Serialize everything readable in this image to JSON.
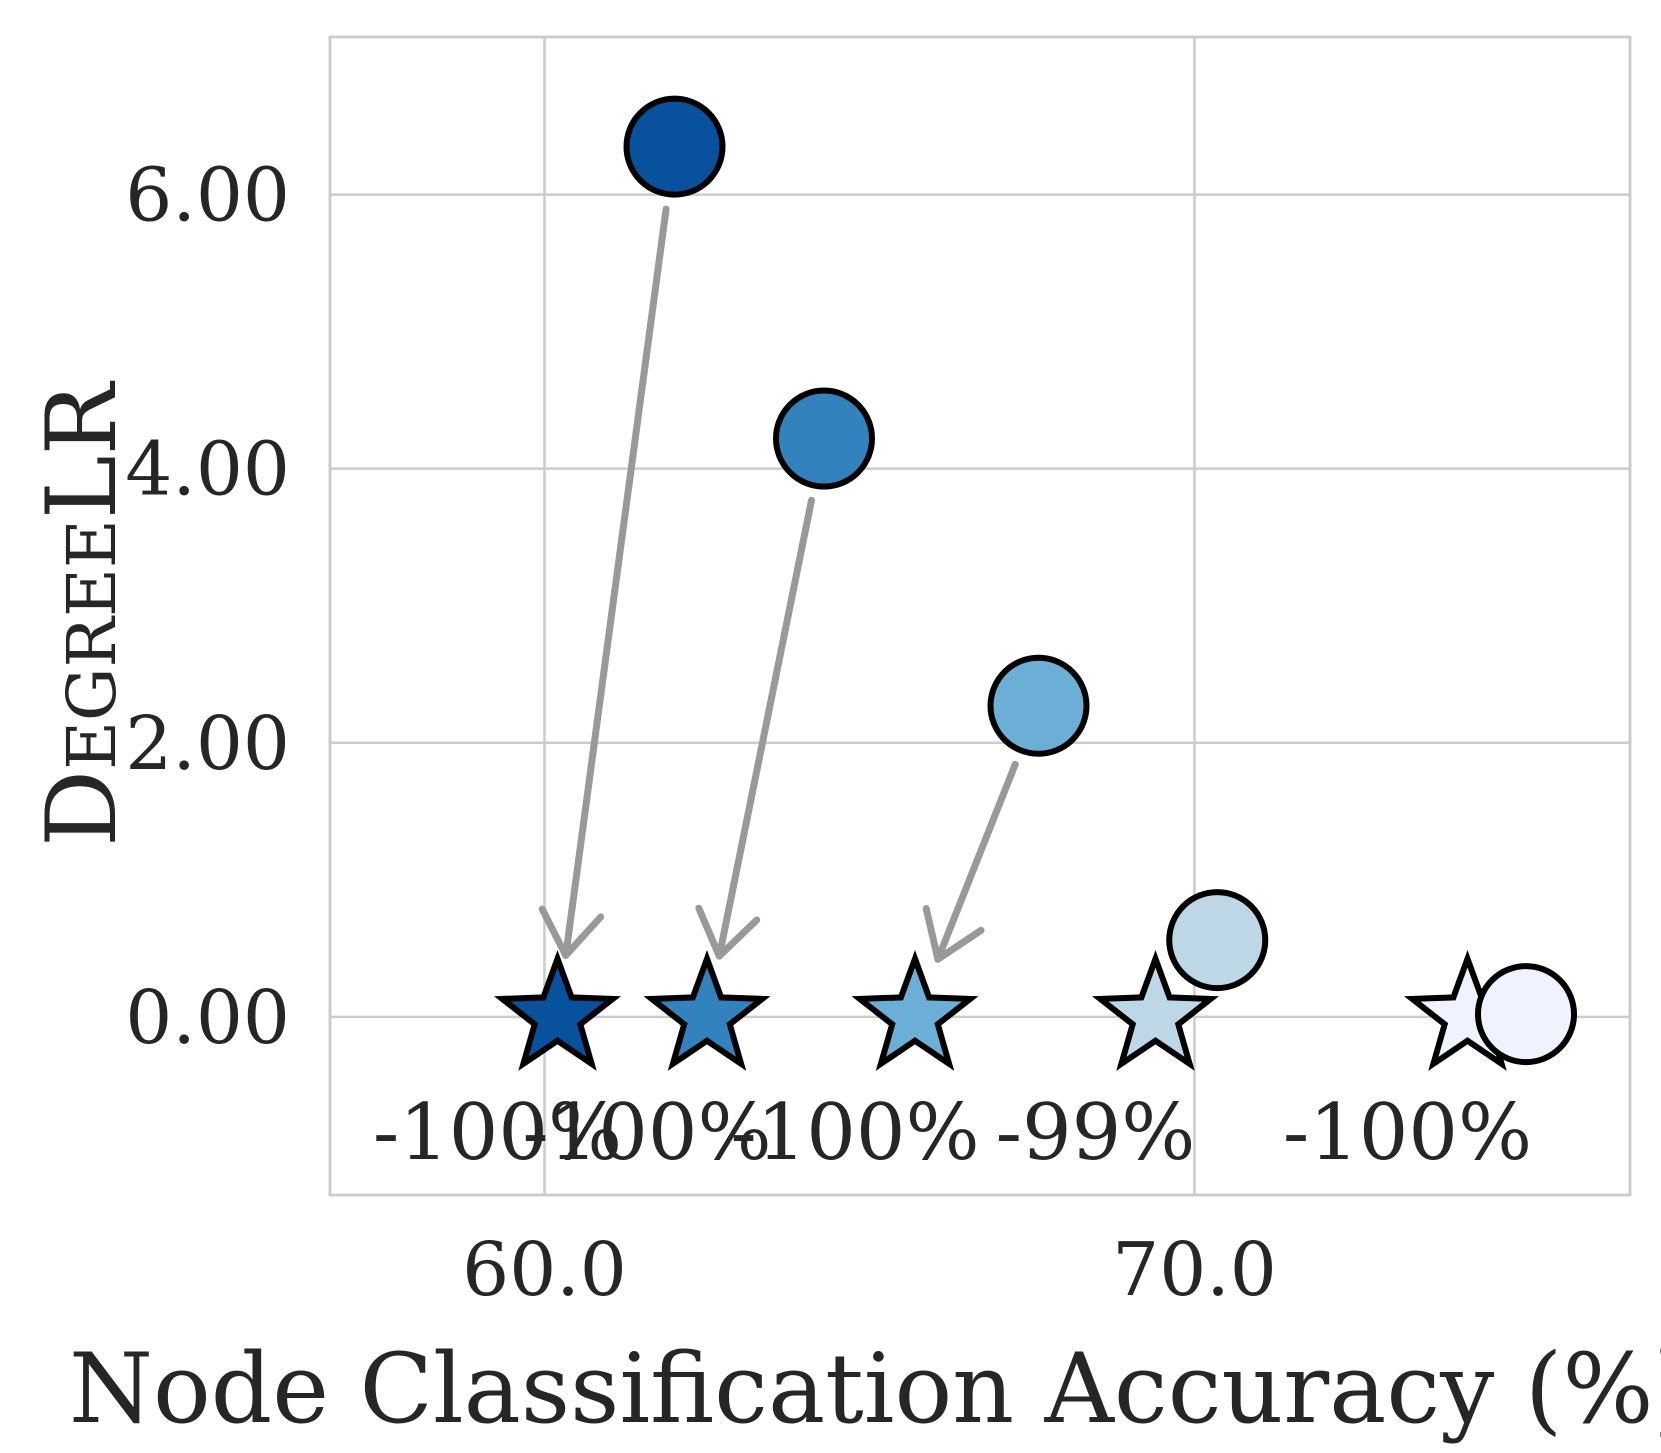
{
  "chart_data": {
    "type": "scatter",
    "xlabel": "Node Classification Accuracy (%)",
    "ylabel": "DegreeLR",
    "xlim": [
      56.7,
      76.7
    ],
    "ylim": [
      -1.3,
      7.15
    ],
    "x_ticks": [
      {
        "value": 60.0,
        "label": "60.0"
      },
      {
        "value": 70.0,
        "label": "70.0"
      }
    ],
    "y_ticks": [
      {
        "value": 0,
        "label": "0.00"
      },
      {
        "value": 2,
        "label": "2.00"
      },
      {
        "value": 4,
        "label": "4.00"
      },
      {
        "value": 6,
        "label": "6.00"
      }
    ],
    "grid": true,
    "points": [
      {
        "before": {
          "x": 62.0,
          "y": 6.35
        },
        "after": {
          "x": 60.2,
          "y": 0.0
        },
        "change_label": "-100%",
        "color": "#08519c"
      },
      {
        "before": {
          "x": 64.3,
          "y": 4.22
        },
        "after": {
          "x": 62.5,
          "y": 0.0
        },
        "change_label": "-100%",
        "color": "#3182bd"
      },
      {
        "before": {
          "x": 67.6,
          "y": 2.27
        },
        "after": {
          "x": 65.7,
          "y": 0.0
        },
        "change_label": "-100%",
        "color": "#6baed6"
      },
      {
        "before": {
          "x": 70.35,
          "y": 0.56
        },
        "after": {
          "x": 69.4,
          "y": 0.0
        },
        "change_label": "-99%",
        "color": "#bdd7e7"
      },
      {
        "before": {
          "x": 75.1,
          "y": 0.02
        },
        "after": {
          "x": 74.2,
          "y": 0.0
        },
        "change_label": "-100%",
        "color": "#eff3ff"
      }
    ],
    "arrow_color": "#999999",
    "edge_color": "#000000",
    "grid_color": "#cccccc"
  }
}
